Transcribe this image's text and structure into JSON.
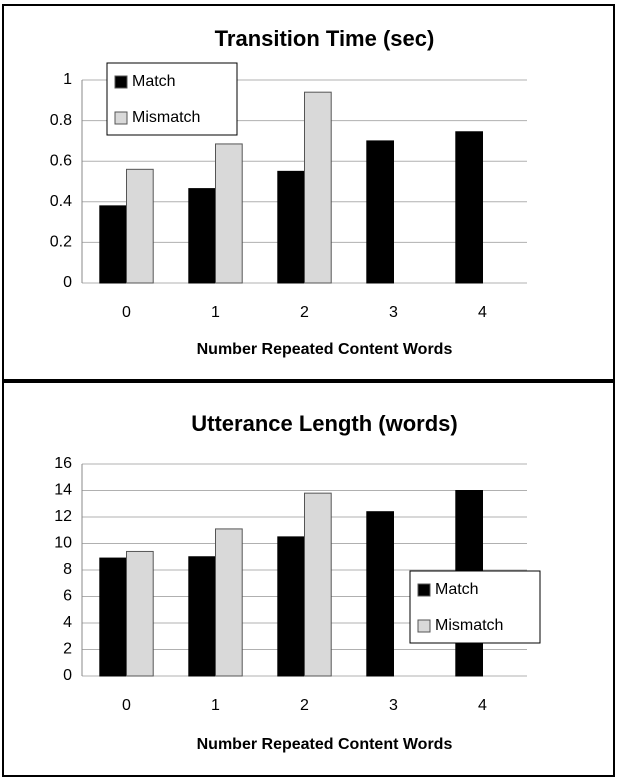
{
  "chart_data": [
    {
      "type": "bar",
      "title": "Transition Time (sec)",
      "x_label": "Number Repeated Content Words",
      "categories": [
        "0",
        "1",
        "2",
        "3",
        "4"
      ],
      "series": [
        {
          "name": "Match",
          "color": "#000000",
          "values": [
            0.38,
            0.465,
            0.55,
            0.7,
            0.745
          ]
        },
        {
          "name": "Mismatch",
          "color": "#d9d9d9",
          "values": [
            0.56,
            0.685,
            0.94,
            null,
            null
          ]
        }
      ],
      "ylim": [
        0,
        1
      ],
      "yticks": [
        0,
        0.2,
        0.4,
        0.6,
        0.8,
        1
      ],
      "grid": true,
      "legend": "upper left"
    },
    {
      "type": "bar",
      "title": "Utterance Length (words)",
      "x_label": "Number Repeated Content Words",
      "categories": [
        "0",
        "1",
        "2",
        "3",
        "4"
      ],
      "series": [
        {
          "name": "Match",
          "color": "#000000",
          "values": [
            8.9,
            9.0,
            10.5,
            12.4,
            14.0
          ]
        },
        {
          "name": "Mismatch",
          "color": "#d9d9d9",
          "values": [
            9.4,
            11.1,
            13.8,
            null,
            null
          ]
        }
      ],
      "ylim": [
        0,
        16
      ],
      "yticks": [
        0,
        2,
        4,
        6,
        8,
        10,
        12,
        14,
        16
      ],
      "grid": true,
      "legend": "right"
    }
  ]
}
